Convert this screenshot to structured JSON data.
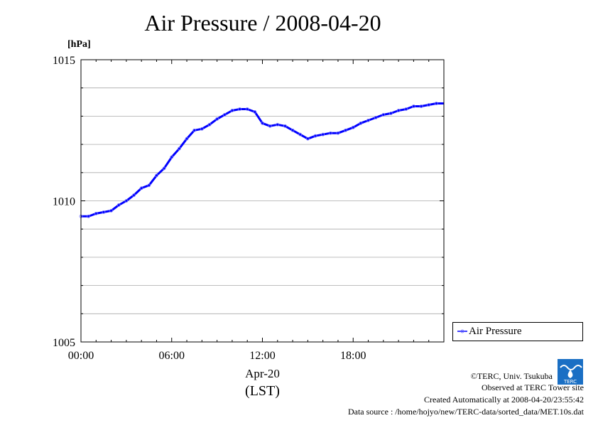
{
  "chart_data": {
    "type": "line",
    "title": "Air Pressure / 2008-04-20",
    "ylabel": "[hPa]",
    "xlabel_line1": "Apr-20",
    "xlabel_line2": "(LST)",
    "ylim": [
      1005,
      1015
    ],
    "xlim_hours": [
      0,
      24
    ],
    "yticks": [
      1005,
      1010,
      1015
    ],
    "xticks": [
      {
        "label": "00:00",
        "hour": 0
      },
      {
        "label": "06:00",
        "hour": 6
      },
      {
        "label": "12:00",
        "hour": 12
      },
      {
        "label": "18:00",
        "hour": 18
      }
    ],
    "grid": true,
    "legend_position": "right-bottom",
    "series": [
      {
        "name": "Air Pressure",
        "color": "#0000ff",
        "x_hours": [
          0.0,
          0.5,
          1.0,
          1.5,
          2.0,
          2.5,
          3.0,
          3.5,
          4.0,
          4.5,
          5.0,
          5.5,
          6.0,
          6.5,
          7.0,
          7.5,
          8.0,
          8.5,
          9.0,
          9.5,
          10.0,
          10.5,
          11.0,
          11.5,
          12.0,
          12.5,
          13.0,
          13.5,
          14.0,
          14.5,
          15.0,
          15.5,
          16.0,
          16.5,
          17.0,
          17.5,
          18.0,
          18.5,
          19.0,
          19.5,
          20.0,
          20.5,
          21.0,
          21.5,
          22.0,
          22.5,
          23.0,
          23.5
        ],
        "values": [
          1009.45,
          1009.45,
          1009.55,
          1009.6,
          1009.65,
          1009.85,
          1010.0,
          1010.2,
          1010.45,
          1010.55,
          1010.9,
          1011.15,
          1011.55,
          1011.85,
          1012.2,
          1012.5,
          1012.55,
          1012.7,
          1012.9,
          1013.05,
          1013.2,
          1013.25,
          1013.25,
          1013.15,
          1012.75,
          1012.65,
          1012.7,
          1012.65,
          1012.5,
          1012.35,
          1012.2,
          1012.3,
          1012.35,
          1012.4,
          1012.4,
          1012.5,
          1012.6,
          1012.75,
          1012.85,
          1012.95,
          1013.05,
          1013.1,
          1013.2,
          1013.25,
          1013.35,
          1013.35,
          1013.4,
          1013.45
        ]
      }
    ]
  },
  "footer": {
    "copyright": "©TERC, Univ. Tsukuba",
    "observed": "Observed at TERC Tower site",
    "created": "Created Automatically at 2008-04-20/23:55:42",
    "source": "Data source : /home/hojyo/new/TERC-data/sorted_data/MET.10s.dat"
  },
  "logo_text": "TERC"
}
